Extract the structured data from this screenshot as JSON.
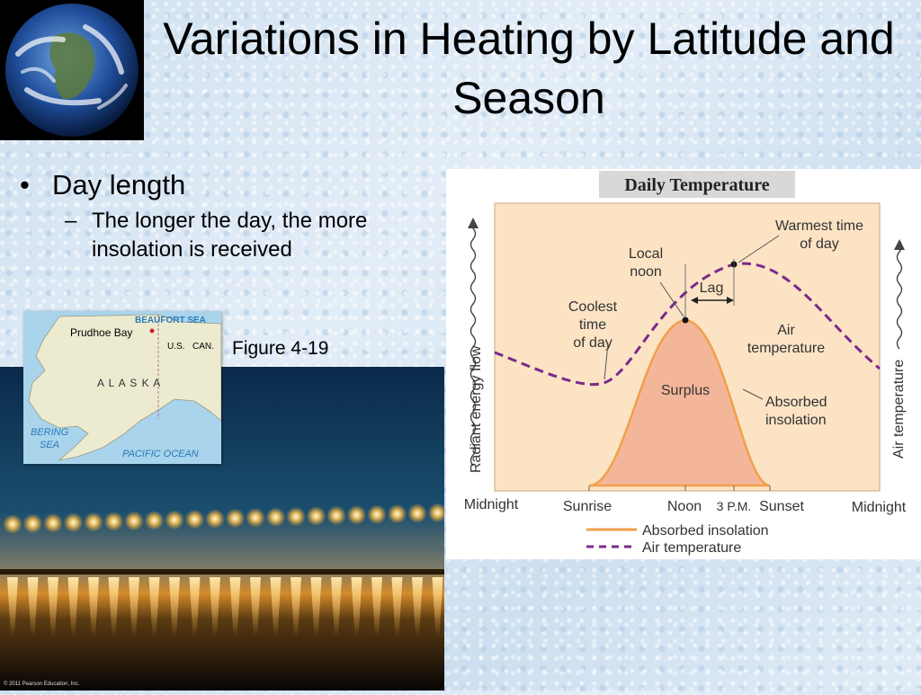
{
  "slide": {
    "title": "Variations in Heating by Latitude and Season",
    "bullets": [
      {
        "text": "Day length",
        "sub": [
          "The longer the day, the more insolation is received"
        ]
      }
    ],
    "figure_label": "Figure 4-19",
    "copyright": "© 2011 Pearson Education, Inc."
  },
  "map": {
    "labels": {
      "beaufort": "BEAUFORT SEA",
      "prudhoe": "Prudhoe Bay",
      "us": "U.S.",
      "can": "CAN.",
      "alaska": "A L A S K A",
      "bering1": "BERING",
      "bering2": "SEA",
      "pacific": "PACIFIC OCEAN"
    },
    "colors": {
      "sea": "#a9d4ec",
      "land": "#ecebd0",
      "sea_label": "#2a7ab8",
      "dot": "#d0202a"
    }
  },
  "chart_data": {
    "type": "line",
    "title": "Daily Temperature",
    "x": [
      "Midnight",
      "Sunrise",
      "Noon",
      "3 P.M.",
      "Sunset",
      "Midnight"
    ],
    "ylabel_left": "Radiant energy flow",
    "ylabel_right": "Air temperature",
    "series": [
      {
        "name": "Absorbed insolation",
        "style": "solid",
        "color": "#f0a04a",
        "fill": "#f4b69a",
        "shape": "zero before Sunrise, peaks at Noon, zero after Sunset"
      },
      {
        "name": "Air temperature",
        "style": "dashed",
        "color": "#7a2a8a",
        "shape": "declines to minimum near Sunrise, peaks at 3 P.M., declines toward Midnight"
      }
    ],
    "annotations": {
      "surplus": "Surplus",
      "absorbed1": "Absorbed",
      "absorbed2": "insolation",
      "air1": "Air",
      "air2": "temperature",
      "local1": "Local",
      "local2": "noon",
      "lag": "Lag",
      "warm1": "Warmest time",
      "warm2": "of day",
      "cool1": "Coolest",
      "cool2": "time",
      "cool3": "of day"
    },
    "legend_placement": "bottom",
    "colors": {
      "plot_bg": "#fbe3c4",
      "title_bg": "#d8d8d8"
    }
  }
}
